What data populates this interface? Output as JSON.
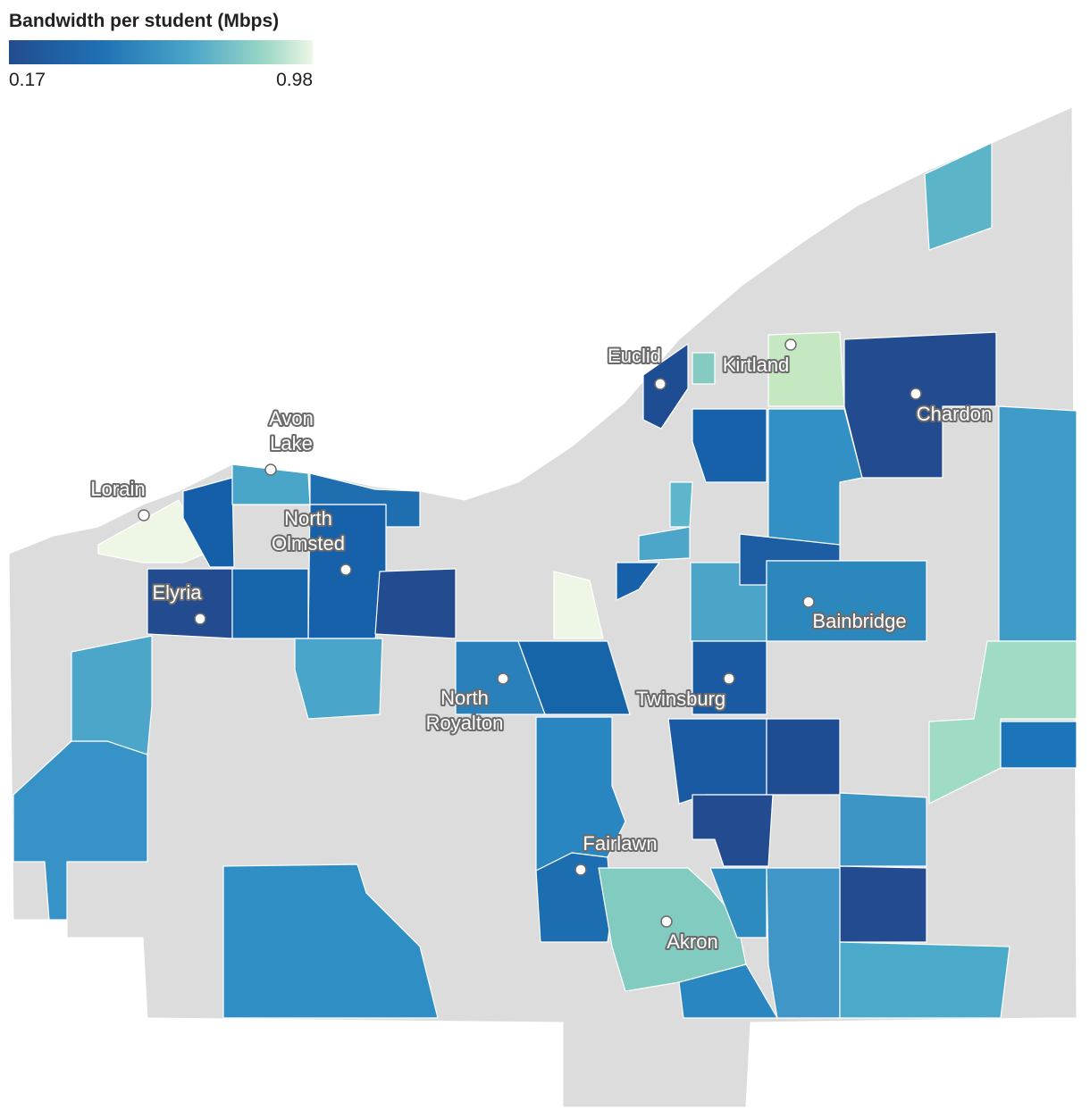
{
  "legend": {
    "title": "Bandwidth per student (Mbps)",
    "min": 0.17,
    "max": 0.98
  },
  "cities": [
    [
      "Lorain"
    ],
    [
      "Avon",
      "Lake"
    ],
    [
      "North",
      "Olmsted"
    ],
    [
      "Elyria"
    ],
    [
      "Euclid"
    ],
    [
      "Kirtland"
    ],
    [
      "Chardon"
    ],
    [
      "Bainbridge"
    ],
    [
      "North",
      "Royalton"
    ],
    [
      "Twinsburg"
    ],
    [
      "Fairlawn"
    ],
    [
      "Akron"
    ]
  ]
}
